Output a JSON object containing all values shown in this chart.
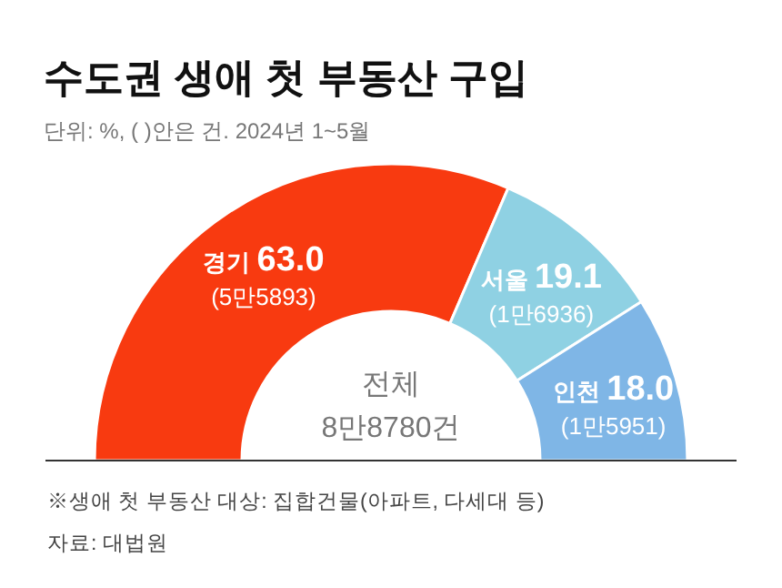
{
  "chart_data": {
    "type": "donut",
    "title": "수도권 생애 첫 부동산 구입",
    "subtitle": "단위: %, ( )안은 건. 2024년 1~5월",
    "categories": [
      "경기",
      "서울",
      "인천"
    ],
    "values": [
      63.0,
      19.1,
      18.0
    ],
    "value_labels": [
      "63.0",
      "19.1",
      "18.0"
    ],
    "colors": [
      "#f83a10",
      "#8fd1e3",
      "#7fb6e6"
    ],
    "annotations": [
      "(5만5893)",
      "(1만6936)",
      "(1만5951)",
      "전체",
      "8만8780건",
      "※생애 첫 부동산 대상: 집합건물(아파트, 다세대 등)",
      "자료: 대법원"
    ]
  }
}
